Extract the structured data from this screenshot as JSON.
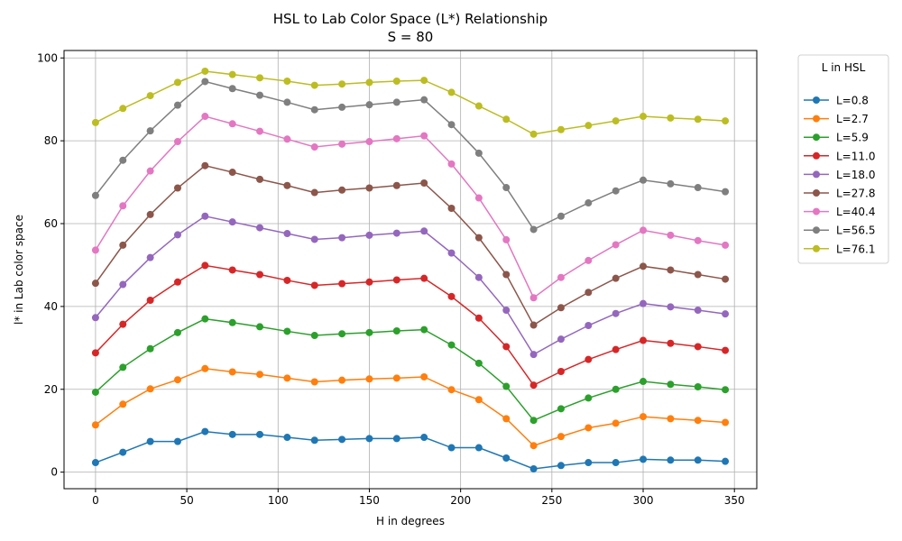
{
  "chart_data": {
    "type": "line",
    "title_line1": "HSL to Lab Color Space (L*) Relationship",
    "title_line2": "S = 80",
    "xlabel": "H in degrees",
    "ylabel": "l* in Lab color space",
    "xlim": [
      -17.25,
      362.25
    ],
    "ylim": [
      -4.0,
      101.8
    ],
    "xticks": [
      0,
      50,
      100,
      150,
      200,
      250,
      300,
      350
    ],
    "yticks": [
      0,
      20,
      40,
      60,
      80,
      100
    ],
    "grid": true,
    "legend": {
      "title": "L in HSL",
      "placement": "outside-right"
    },
    "x": [
      0,
      15,
      30,
      45,
      60,
      75,
      90,
      105,
      120,
      135,
      150,
      165,
      180,
      195,
      210,
      225,
      240,
      255,
      270,
      285,
      300,
      315,
      330,
      345
    ],
    "series": [
      {
        "name": "L=0.8",
        "color": "#1f77b4",
        "values": [
          2.3,
          4.8,
          7.4,
          7.4,
          9.8,
          9.1,
          9.1,
          8.4,
          7.7,
          7.9,
          8.1,
          8.1,
          8.4,
          5.9,
          5.9,
          3.4,
          0.8,
          1.6,
          2.3,
          2.3,
          3.1,
          2.9,
          2.9,
          2.6
        ]
      },
      {
        "name": "L=2.7",
        "color": "#ff7f0e",
        "values": [
          11.4,
          16.4,
          20.1,
          22.3,
          25.0,
          24.2,
          23.6,
          22.7,
          21.8,
          22.2,
          22.5,
          22.7,
          23.0,
          19.9,
          17.5,
          12.9,
          6.4,
          8.6,
          10.7,
          11.8,
          13.4,
          12.9,
          12.5,
          12.0
        ]
      },
      {
        "name": "L=5.9",
        "color": "#2ca02c",
        "values": [
          19.3,
          25.3,
          29.8,
          33.7,
          37.0,
          36.1,
          35.1,
          34.0,
          33.0,
          33.4,
          33.7,
          34.1,
          34.4,
          30.7,
          26.3,
          20.7,
          12.5,
          15.3,
          17.9,
          20.0,
          21.9,
          21.2,
          20.6,
          19.9
        ]
      },
      {
        "name": "L=11.0",
        "color": "#d62728",
        "values": [
          28.8,
          35.7,
          41.5,
          45.9,
          49.9,
          48.8,
          47.7,
          46.3,
          45.1,
          45.5,
          45.9,
          46.4,
          46.8,
          42.4,
          37.2,
          30.3,
          21.0,
          24.3,
          27.2,
          29.6,
          31.8,
          31.1,
          30.3,
          29.4
        ]
      },
      {
        "name": "L=18.0",
        "color": "#9467bd",
        "values": [
          37.3,
          45.3,
          51.8,
          57.3,
          61.8,
          60.4,
          59.0,
          57.6,
          56.2,
          56.6,
          57.2,
          57.7,
          58.2,
          52.9,
          47.0,
          39.1,
          28.4,
          32.1,
          35.4,
          38.3,
          40.7,
          39.9,
          39.1,
          38.2
        ]
      },
      {
        "name": "L=27.8",
        "color": "#8c564b",
        "values": [
          45.6,
          54.8,
          62.2,
          68.6,
          74.0,
          72.4,
          70.7,
          69.2,
          67.5,
          68.1,
          68.6,
          69.2,
          69.8,
          63.7,
          56.6,
          47.7,
          35.5,
          39.7,
          43.4,
          46.8,
          49.7,
          48.8,
          47.7,
          46.6
        ]
      },
      {
        "name": "L=40.4",
        "color": "#e377c2",
        "values": [
          53.6,
          64.3,
          72.7,
          79.8,
          85.9,
          84.1,
          82.3,
          80.4,
          78.5,
          79.2,
          79.8,
          80.5,
          81.2,
          74.4,
          66.2,
          56.1,
          42.1,
          47.0,
          51.1,
          54.9,
          58.4,
          57.2,
          55.9,
          54.8
        ]
      },
      {
        "name": "L=56.5",
        "color": "#7f7f7f",
        "values": [
          66.8,
          75.3,
          82.4,
          88.6,
          94.3,
          92.6,
          91.0,
          89.3,
          87.5,
          88.1,
          88.7,
          89.3,
          89.9,
          83.9,
          77.0,
          68.7,
          58.6,
          61.8,
          65.0,
          67.9,
          70.5,
          69.6,
          68.7,
          67.7
        ]
      },
      {
        "name": "L=76.1",
        "color": "#bcbd22",
        "values": [
          84.4,
          87.8,
          90.9,
          94.1,
          96.8,
          96.0,
          95.2,
          94.4,
          93.4,
          93.7,
          94.1,
          94.4,
          94.6,
          91.7,
          88.4,
          85.2,
          81.6,
          82.7,
          83.7,
          84.8,
          85.9,
          85.5,
          85.2,
          84.8
        ]
      }
    ]
  }
}
